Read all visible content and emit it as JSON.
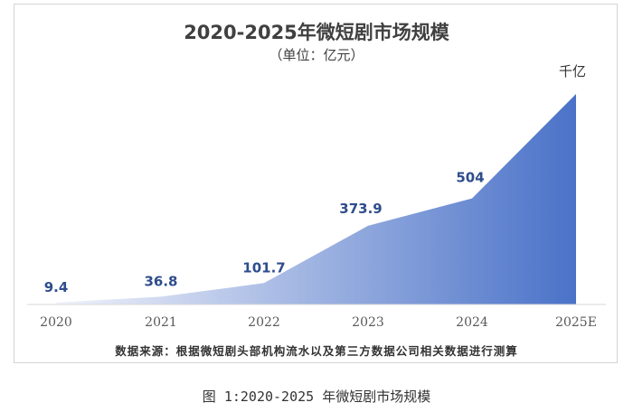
{
  "figure": {
    "source_note": "数据来源：根据微短剧头部机构流水以及第三方数据公司相关数据进行测算",
    "caption": "图 1:2020-2025 年微短剧市场规模"
  },
  "chart_data": {
    "type": "area",
    "title": "2020-2025年微短剧市场规模",
    "subtitle": "（单位：亿元）",
    "categories": [
      "2020",
      "2021",
      "2022",
      "2023",
      "2024",
      "2025E"
    ],
    "values": [
      9.4,
      36.8,
      101.7,
      373.9,
      504,
      1000
    ],
    "data_labels": [
      "9.4",
      "36.8",
      "101.7",
      "373.9",
      "504",
      "千亿"
    ],
    "ylim": [
      0,
      1000
    ],
    "grid": false,
    "legend": "none",
    "colors": {
      "fill_start": "#f1f3fa",
      "fill_end": "#4a72c8",
      "label": "#2f4d8c",
      "axis_text": "#595959"
    }
  }
}
